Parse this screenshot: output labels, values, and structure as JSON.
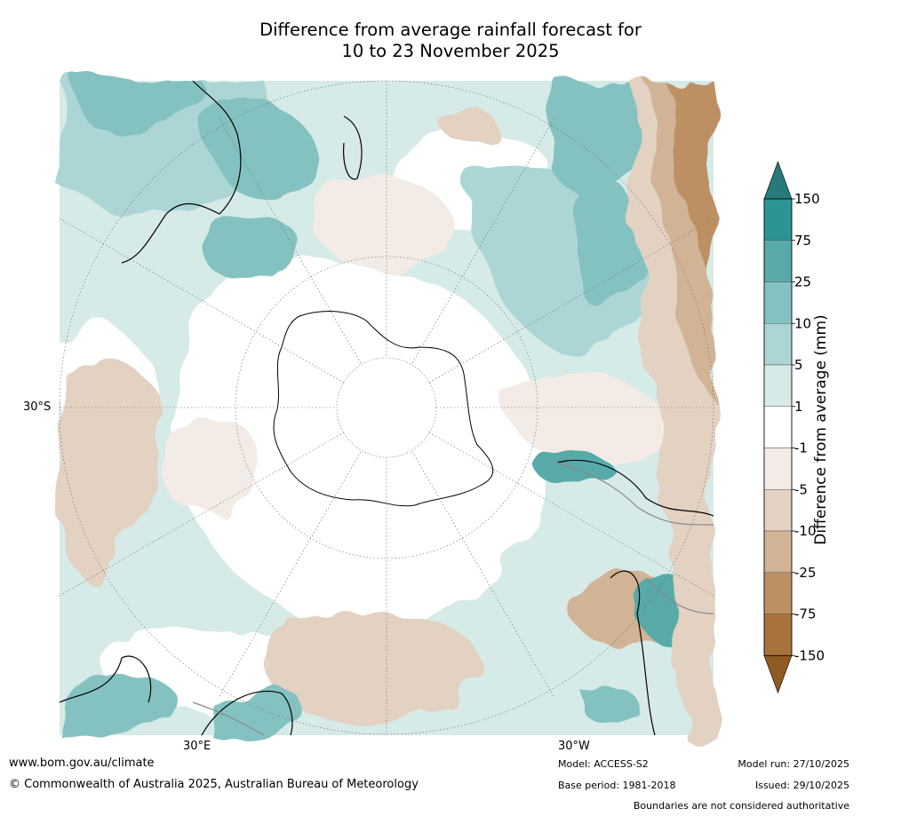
{
  "title": {
    "line1": "Difference from average rainfall forecast for",
    "line2": "10 to 23 November 2025"
  },
  "map_labels": {
    "lat_left": "30°S",
    "lon_bottom_left": "30°E",
    "lon_bottom_right": "30°W"
  },
  "colorbar": {
    "title": "Difference from average (mm)",
    "ticks": [
      "150",
      "75",
      "25",
      "10",
      "5",
      "1",
      "-1",
      "-5",
      "-10",
      "-25",
      "-75",
      "-150"
    ],
    "colors": [
      "#2b9594",
      "#58aaa9",
      "#84c2c1",
      "#acd6d5",
      "#d6eae8",
      "#ffffff",
      "#f3ece6",
      "#e3d1c2",
      "#d1b395",
      "#bd9064",
      "#a9733e"
    ],
    "top_arrow_color": "#277a79",
    "bottom_arrow_color": "#8f5a24"
  },
  "footer": {
    "url": "www.bom.gov.au/climate",
    "copyright": "© Commonwealth of Australia 2025, Australian Bureau of Meteorology",
    "model": "Model: ACCESS-S2",
    "base_period": "Base period: 1981-2018",
    "model_run": "Model run: 27/10/2025",
    "issued": "Issued: 29/10/2025",
    "disclaimer": "Boundaries are not considered authoritative"
  }
}
